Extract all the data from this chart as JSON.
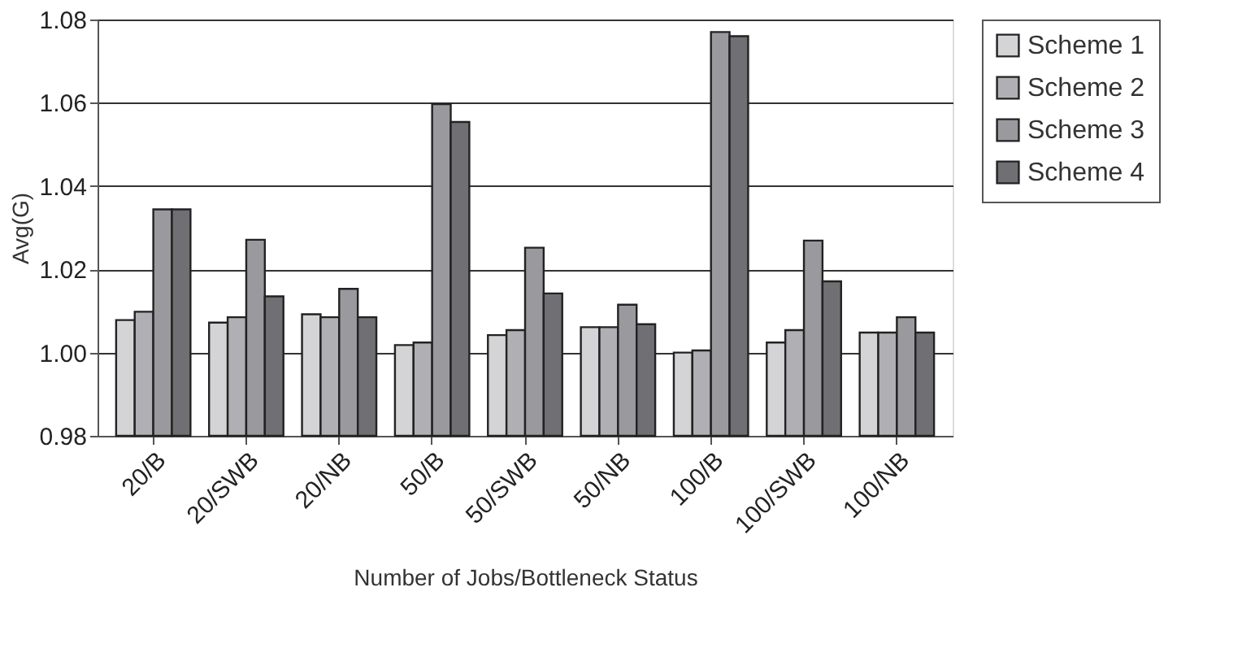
{
  "chart_data": {
    "type": "bar",
    "xlabel": "Number of Jobs/Bottleneck Status",
    "ylabel": "Avg(G)",
    "categories": [
      "20/B",
      "20/SWB",
      "20/NB",
      "50/B",
      "50/SWB",
      "50/NB",
      "100/B",
      "100/SWB",
      "100/NB"
    ],
    "series": [
      {
        "name": "Scheme 1",
        "color": "#d4d4d6",
        "values": [
          1.0078,
          1.0072,
          1.0092,
          1.0018,
          1.0042,
          1.0061,
          1.0,
          1.0024,
          1.0048
        ]
      },
      {
        "name": "Scheme 2",
        "color": "#b0b0b4",
        "values": [
          1.0098,
          1.0085,
          1.0085,
          1.0024,
          1.0054,
          1.0061,
          1.0005,
          1.0054,
          1.0048
        ]
      },
      {
        "name": "Scheme 3",
        "color": "#9a9a9e",
        "values": [
          1.0344,
          1.0271,
          1.0153,
          1.0597,
          1.0252,
          1.0115,
          1.077,
          1.0269,
          1.0085
        ]
      },
      {
        "name": "Scheme 4",
        "color": "#707074",
        "values": [
          1.0344,
          1.0135,
          1.0085,
          1.0554,
          1.0142,
          1.0068,
          1.076,
          1.0171,
          1.0048
        ]
      }
    ],
    "ylim": [
      0.98,
      1.08
    ],
    "yticks": [
      {
        "value": 0.98,
        "label": "0.98"
      },
      {
        "value": 1.0,
        "label": "1.00"
      },
      {
        "value": 1.02,
        "label": "1.02"
      },
      {
        "value": 1.04,
        "label": "1.04"
      },
      {
        "value": 1.06,
        "label": "1.06"
      },
      {
        "value": 1.08,
        "label": "1.08"
      }
    ],
    "grid": "y",
    "legend": "right"
  }
}
